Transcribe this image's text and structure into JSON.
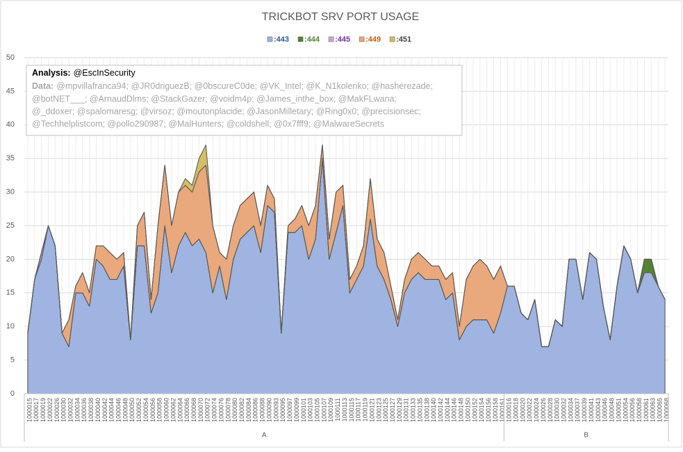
{
  "chart_data": {
    "type": "stacked_area",
    "title": "TRICKBOT SRV PORT USAGE",
    "annotation": {
      "label": "Analysis:",
      "value": "@EscInSecurity",
      "data_label": "Data:",
      "data_lines": [
        "@mpvillafranca94; @JR0driguezB; @0bscureC0de; @VK_Intel; @K_N1kolenko; @hasherezade;",
        "@botNET___; @ArnaudDlms; @StackGazer; @voidm4p; @James_inthe_box; @MakFLwana;",
        "@_ddoxer; @spalomaresg; @virsoz; @moutonplacide; @JasonMilletary; @Ring0x0; @precisionsec;",
        "@Techhelplistcom; @pollo290987; @MalHunters; @coldshell; @0x7fff9; @MalwareSecrets"
      ]
    },
    "categories": [
      "1000015",
      "1000017",
      "1000019",
      "1000022",
      "1000026",
      "1000030",
      "1000032",
      "1000034",
      "1000036",
      "1000038",
      "1000040",
      "1000042",
      "1000044",
      "1000046",
      "1000048",
      "1000050",
      "1000052",
      "1000054",
      "1000056",
      "1000058",
      "1000060",
      "1000062",
      "1000064",
      "1000066",
      "1000068",
      "1000070",
      "1000072",
      "1000074",
      "1000076",
      "1000078",
      "1000080",
      "1000082",
      "1000084",
      "1000086",
      "1000088",
      "1000090",
      "1000093",
      "1000095",
      "1000097",
      "1000099",
      "1000101",
      "1000103",
      "1000105",
      "1000107",
      "1000109",
      "1000111",
      "1000113",
      "1000115",
      "1000117",
      "1000119",
      "1000121",
      "1000123",
      "1000125",
      "1000127",
      "1000129",
      "1000131",
      "1000133",
      "1000135",
      "1000138",
      "1000140",
      "1000142",
      "1000144",
      "1000146",
      "1000148",
      "1000150",
      "1000152",
      "1000154",
      "1000156",
      "1000158",
      "1000161",
      "1000016",
      "1000018",
      "1000020",
      "1000022",
      "1000024",
      "1000026",
      "1000028",
      "1000030",
      "1000032",
      "1000034",
      "1000037",
      "1000039",
      "1000041",
      "1000043",
      "1000046",
      "1000048",
      "1000051",
      "1000054",
      "1000056",
      "1000058",
      "1000061",
      "1000063",
      "1000065",
      "1000068"
    ],
    "groups": [
      {
        "label": "A",
        "size": 70
      },
      {
        "label": "B",
        "size": 24
      }
    ],
    "series": [
      {
        "name": ":443",
        "color": "#9fb4e0",
        "label_color": "#2f5597",
        "values": [
          9,
          17,
          20,
          25,
          22,
          9,
          7,
          15,
          15,
          13,
          20,
          19,
          17,
          17,
          19,
          8,
          22,
          22,
          12,
          15,
          25,
          18,
          22,
          24,
          22,
          23,
          21,
          15,
          19,
          14,
          20,
          23,
          24,
          25,
          21,
          28,
          27,
          9,
          24,
          24,
          25,
          20,
          23,
          35,
          20,
          24,
          28,
          15,
          17,
          19,
          26,
          19,
          17,
          14,
          10,
          15,
          17,
          18,
          17,
          17,
          17,
          14,
          15,
          8,
          10,
          11,
          11,
          11,
          9,
          12,
          16,
          16,
          12,
          11,
          14,
          7,
          7,
          11,
          10,
          20,
          20,
          14,
          21,
          20,
          13,
          8,
          16,
          22,
          20,
          15,
          18,
          18,
          16,
          14
        ]
      },
      {
        "name": ":444",
        "color": "#548235",
        "label_color": "#548235",
        "values": [
          0,
          0,
          0,
          0,
          0,
          0,
          0,
          0,
          0,
          0,
          0,
          0,
          0,
          0,
          0,
          0,
          0,
          0,
          0,
          0,
          0,
          0,
          0,
          0,
          0,
          0,
          0,
          0,
          0,
          0,
          0,
          0,
          0,
          0,
          0,
          0,
          0,
          0,
          0,
          0,
          0,
          0,
          0,
          0,
          0,
          0,
          0,
          0,
          0,
          0,
          0,
          0,
          0,
          0,
          0,
          0,
          0,
          0,
          0,
          0,
          0,
          0,
          0,
          0,
          0,
          0,
          0,
          0,
          0,
          0,
          0,
          0,
          0,
          0,
          0,
          0,
          0,
          0,
          0,
          0,
          0,
          0,
          0,
          0,
          0,
          0,
          0,
          0,
          0,
          0,
          2,
          2,
          0,
          0
        ]
      },
      {
        "name": ":445",
        "color": "#c9a6dd",
        "label_color": "#7030a0",
        "values": [
          0,
          0,
          1,
          0,
          0,
          0,
          0,
          0,
          0,
          0,
          0,
          0,
          0,
          0,
          0,
          0,
          0,
          0,
          0,
          0,
          0,
          0,
          0,
          0,
          0,
          0,
          0,
          0,
          0,
          0,
          0,
          0,
          0,
          0,
          0,
          0,
          0,
          0,
          0,
          0,
          0,
          0,
          0,
          0,
          0,
          0,
          0,
          0,
          0,
          0,
          0,
          0,
          0,
          0,
          0,
          0,
          0,
          0,
          0,
          0,
          0,
          0,
          0,
          0,
          0,
          0,
          0,
          0,
          0,
          0,
          0,
          0,
          0,
          0,
          0,
          0,
          0,
          0,
          0,
          0,
          0,
          0,
          0,
          0,
          0,
          0,
          0,
          0,
          0,
          0,
          0,
          0,
          0,
          0
        ]
      },
      {
        "name": ":449",
        "color": "#eaa97c",
        "label_color": "#c55a11",
        "values": [
          0,
          0,
          0,
          0,
          0,
          0,
          4,
          1,
          3,
          2,
          2,
          3,
          4,
          3,
          2,
          0,
          3,
          5,
          2,
          10,
          9,
          7,
          8,
          7,
          8,
          10,
          13,
          10,
          2,
          6,
          5,
          5,
          5,
          5,
          4,
          3,
          2,
          0,
          1,
          2,
          3,
          5,
          5,
          2,
          3,
          6,
          3,
          2,
          2,
          3,
          6,
          4,
          4,
          2,
          1,
          2,
          3,
          3,
          3,
          2,
          2,
          3,
          3,
          2,
          7,
          8,
          9,
          8,
          8,
          7,
          0,
          0,
          0,
          0,
          0,
          0,
          0,
          0,
          0,
          0,
          0,
          0,
          0,
          0,
          0,
          0,
          0,
          0,
          0,
          0,
          0,
          0,
          0,
          0
        ]
      },
      {
        "name": ":451",
        "color": "#d6be64",
        "label_color": "#404040",
        "values": [
          0,
          0,
          0,
          0,
          0,
          0,
          0,
          0,
          0,
          0,
          0,
          0,
          0,
          0,
          0,
          0,
          0,
          0,
          0,
          0,
          0,
          0,
          0,
          1,
          1,
          2,
          3,
          0,
          0,
          0,
          0,
          0,
          0,
          0,
          0,
          0,
          0,
          0,
          0,
          0,
          0,
          0,
          0,
          0,
          0,
          0,
          0,
          0,
          0,
          0,
          0,
          0,
          0,
          0,
          0,
          0,
          0,
          0,
          0,
          0,
          0,
          0,
          0,
          0,
          0,
          0,
          0,
          0,
          0,
          0,
          0,
          0,
          0,
          0,
          0,
          0,
          0,
          0,
          0,
          0,
          0,
          0,
          0,
          0,
          0,
          0,
          0,
          0,
          0,
          0,
          0,
          0,
          0,
          0
        ]
      }
    ],
    "ylim": [
      0,
      50
    ],
    "yticks": [
      0,
      5,
      10,
      15,
      20,
      25,
      30,
      35,
      40,
      45,
      50
    ],
    "grid": true,
    "legend": "top"
  }
}
